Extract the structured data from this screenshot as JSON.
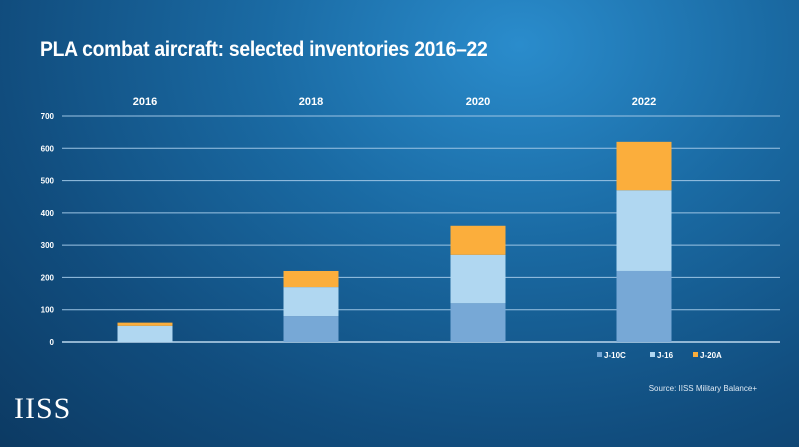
{
  "title": "PLA combat aircraft: selected inventories 2016–22",
  "source": "Source: IISS Military Balance+",
  "logo": "IISS",
  "chart_data": {
    "type": "bar",
    "stacked": true,
    "title": "PLA combat aircraft: selected inventories 2016–22",
    "categories": [
      "2016",
      "2018",
      "2020",
      "2022"
    ],
    "series": [
      {
        "name": "J-10C",
        "color": "#77a8d6",
        "values": [
          0,
          80,
          120,
          220
        ]
      },
      {
        "name": "J-16",
        "color": "#b0d7f1",
        "values": [
          50,
          90,
          150,
          250
        ]
      },
      {
        "name": "J-20A",
        "color": "#fbae3c",
        "values": [
          10,
          50,
          90,
          150
        ]
      }
    ],
    "ylim": [
      0,
      700
    ],
    "yticks": [
      "0",
      "100",
      "200",
      "300",
      "400",
      "500",
      "600",
      "700"
    ],
    "grid": true,
    "legend": "bottom-right",
    "xlabel": "",
    "ylabel": ""
  }
}
